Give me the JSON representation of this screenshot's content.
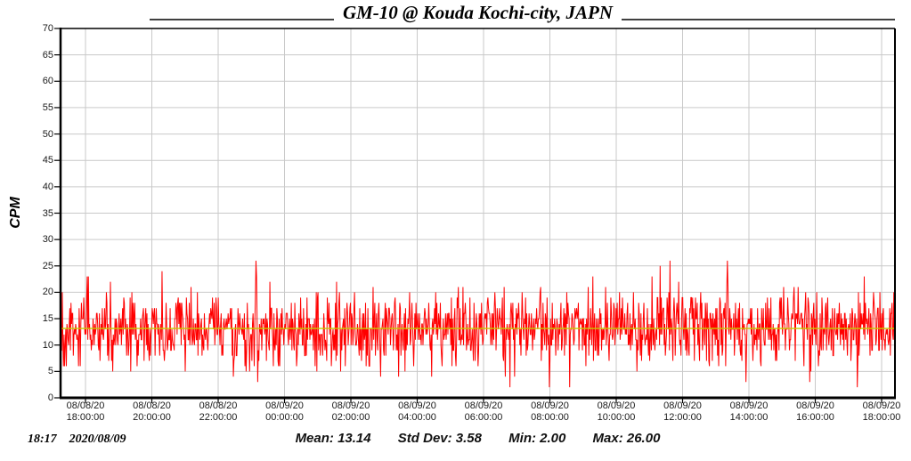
{
  "window": {
    "title": "GM-10 @ Kouda Kochi-city, JAPN"
  },
  "footer": {
    "time": "18:17",
    "date": "2020/08/09",
    "stats_mean": "Mean: 13.14",
    "stats_std": "Std Dev: 3.58",
    "stats_min": "Min: 2.00",
    "stats_max": "Max: 26.00"
  },
  "chart_data": {
    "type": "line",
    "title": "GM-10 @ Kouda Kochi-city, JAPN",
    "xlabel": "",
    "ylabel": "CPM",
    "ylim": [
      0,
      70
    ],
    "y_ticks": [
      70,
      65,
      60,
      55,
      50,
      45,
      40,
      35,
      30,
      25,
      20,
      15,
      10,
      5,
      0
    ],
    "x_ticks": [
      {
        "date": "08/08/20",
        "time": "18:00:00"
      },
      {
        "date": "08/08/20",
        "time": "20:00:00"
      },
      {
        "date": "08/08/20",
        "time": "22:00:00"
      },
      {
        "date": "08/09/20",
        "time": "00:00:00"
      },
      {
        "date": "08/09/20",
        "time": "02:00:00"
      },
      {
        "date": "08/09/20",
        "time": "04:00:00"
      },
      {
        "date": "08/09/20",
        "time": "06:00:00"
      },
      {
        "date": "08/09/20",
        "time": "08:00:00"
      },
      {
        "date": "08/09/20",
        "time": "10:00:00"
      },
      {
        "date": "08/09/20",
        "time": "12:00:00"
      },
      {
        "date": "08/09/20",
        "time": "14:00:00"
      },
      {
        "date": "08/09/20",
        "time": "16:00:00"
      },
      {
        "date": "08/09/20",
        "time": "18:00:00"
      }
    ],
    "stats": {
      "mean": 13.14,
      "std_dev": 3.58,
      "min": 2.0,
      "max": 26.0
    },
    "series": {
      "name": "CPM",
      "color": "#ff0000",
      "n_points": 1440,
      "noise": {
        "mean": 13.14,
        "std_dev": 3.58,
        "min": 2,
        "max": 26,
        "seed": 20200809
      },
      "features": [
        {
          "frac": 0.586,
          "value": 2
        },
        {
          "frac": 0.234,
          "value": 26
        },
        {
          "frac": 0.799,
          "value": 26
        }
      ]
    },
    "mean_line": {
      "value": 13.14,
      "color": "#c6cc00"
    },
    "grid": {
      "on": true,
      "color": "#c9c9c9"
    },
    "axis_color": "#000000",
    "legend": "none"
  }
}
